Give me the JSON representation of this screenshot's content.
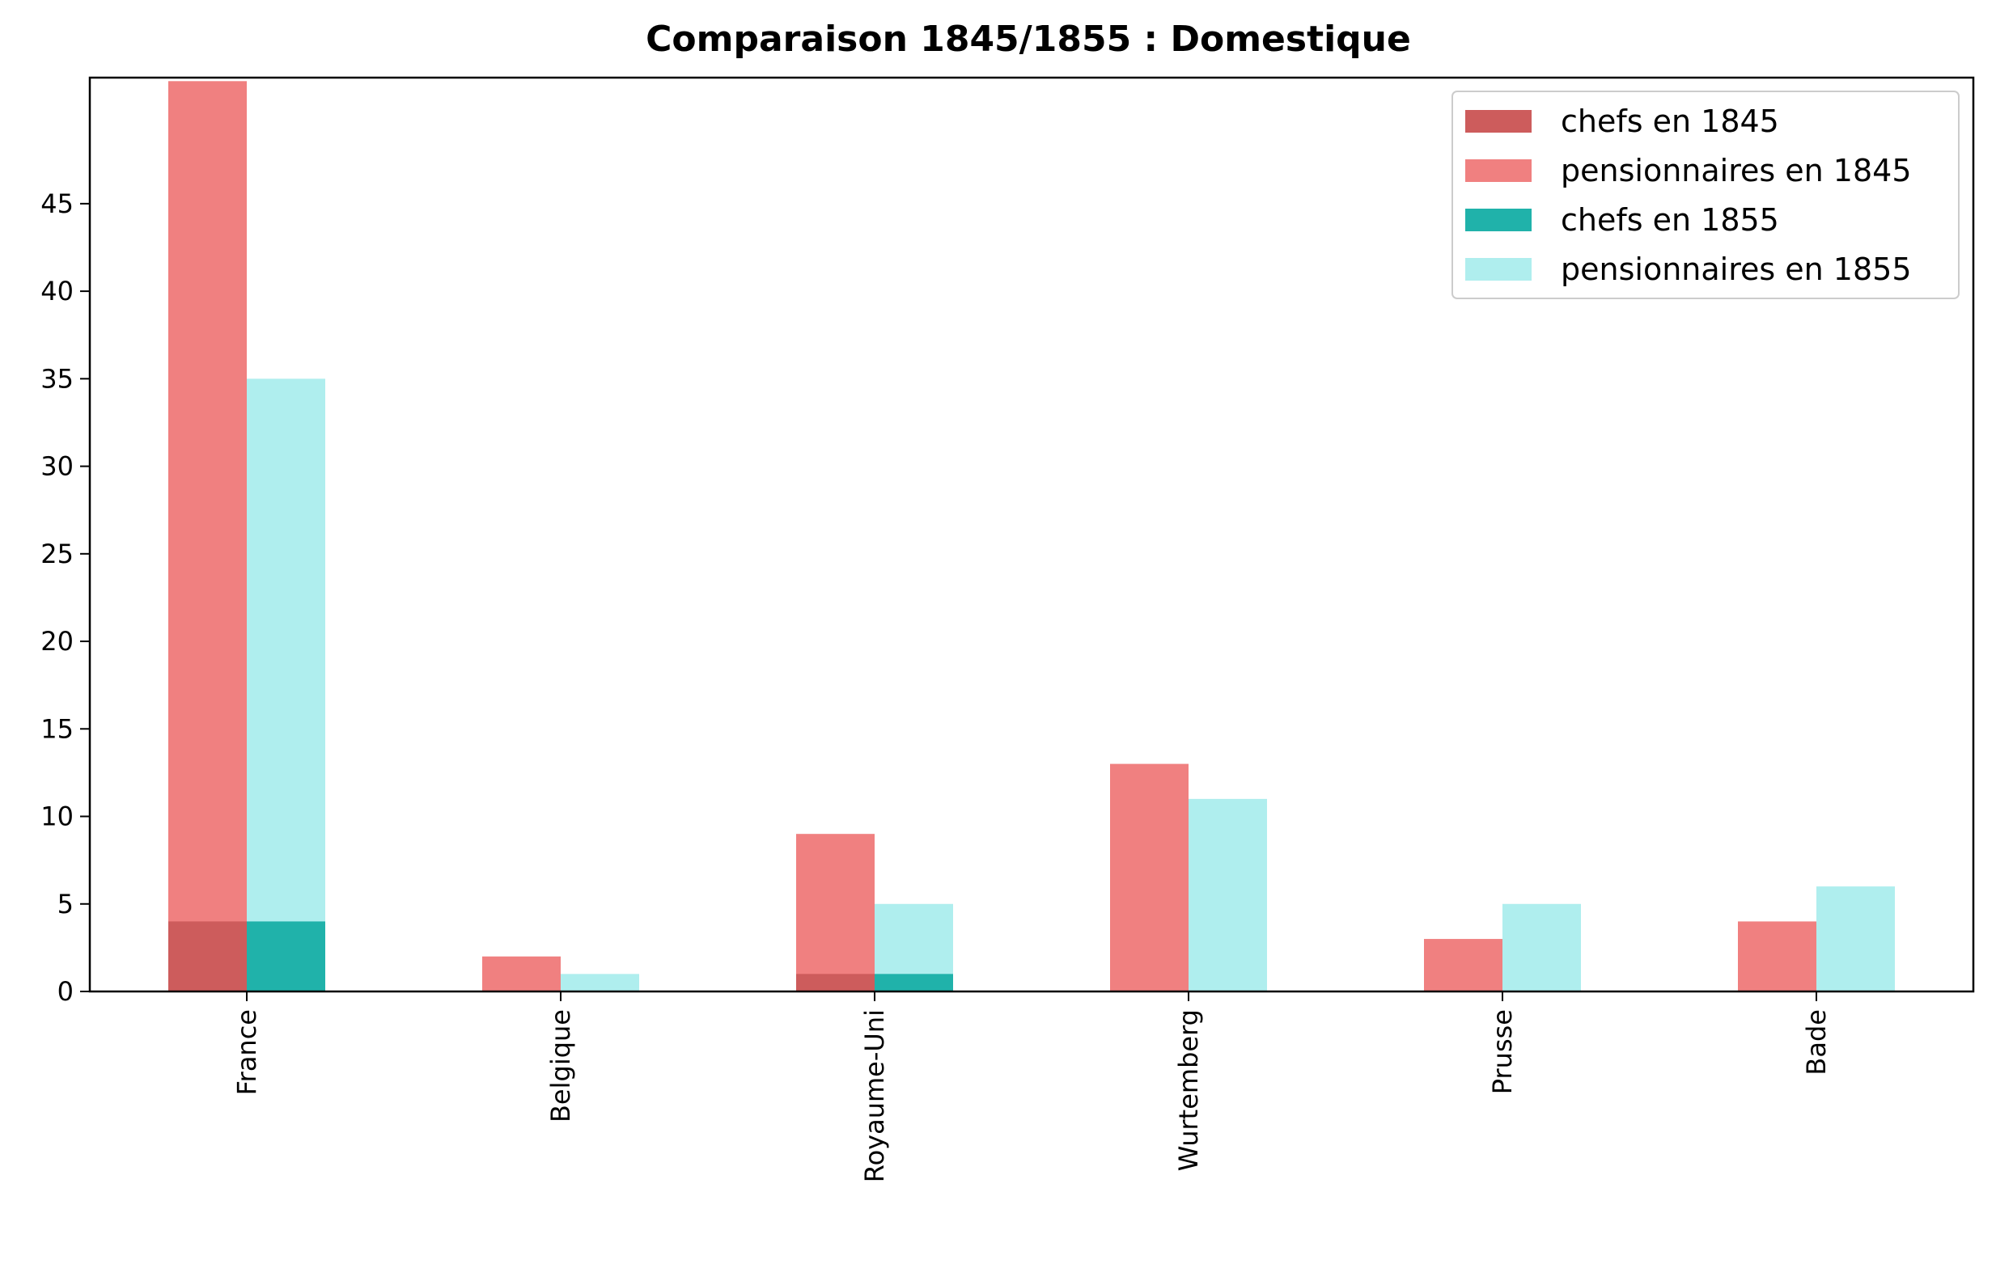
{
  "chart_data": {
    "type": "bar",
    "title": "Comparaison 1845/1855 : Domestique",
    "xlabel": "",
    "ylabel": "",
    "categories": [
      "France",
      "Belgique",
      "Royaume-Uni",
      "Wurtemberg",
      "Prusse",
      "Bade"
    ],
    "ylim": [
      0,
      52.2
    ],
    "yticks": [
      0,
      5,
      10,
      15,
      20,
      25,
      30,
      35,
      40,
      45
    ],
    "grid": false,
    "legend_position": "top-right",
    "series": [
      {
        "name": "chefs en 1845",
        "values": [
          4,
          0,
          1,
          0,
          0,
          0
        ],
        "color": "#cd5c5c",
        "year_group": 0
      },
      {
        "name": "pensionnaires en 1845",
        "values": [
          52,
          2,
          9,
          13,
          3,
          4
        ],
        "color": "#f08080",
        "year_group": 0
      },
      {
        "name": "chefs en 1855",
        "values": [
          4,
          0,
          1,
          0,
          0,
          0
        ],
        "color": "#20b2aa",
        "year_group": 1
      },
      {
        "name": "pensionnaires en 1855",
        "values": [
          35,
          1,
          5,
          11,
          5,
          6
        ],
        "color": "#afeeee",
        "year_group": 1
      }
    ]
  }
}
